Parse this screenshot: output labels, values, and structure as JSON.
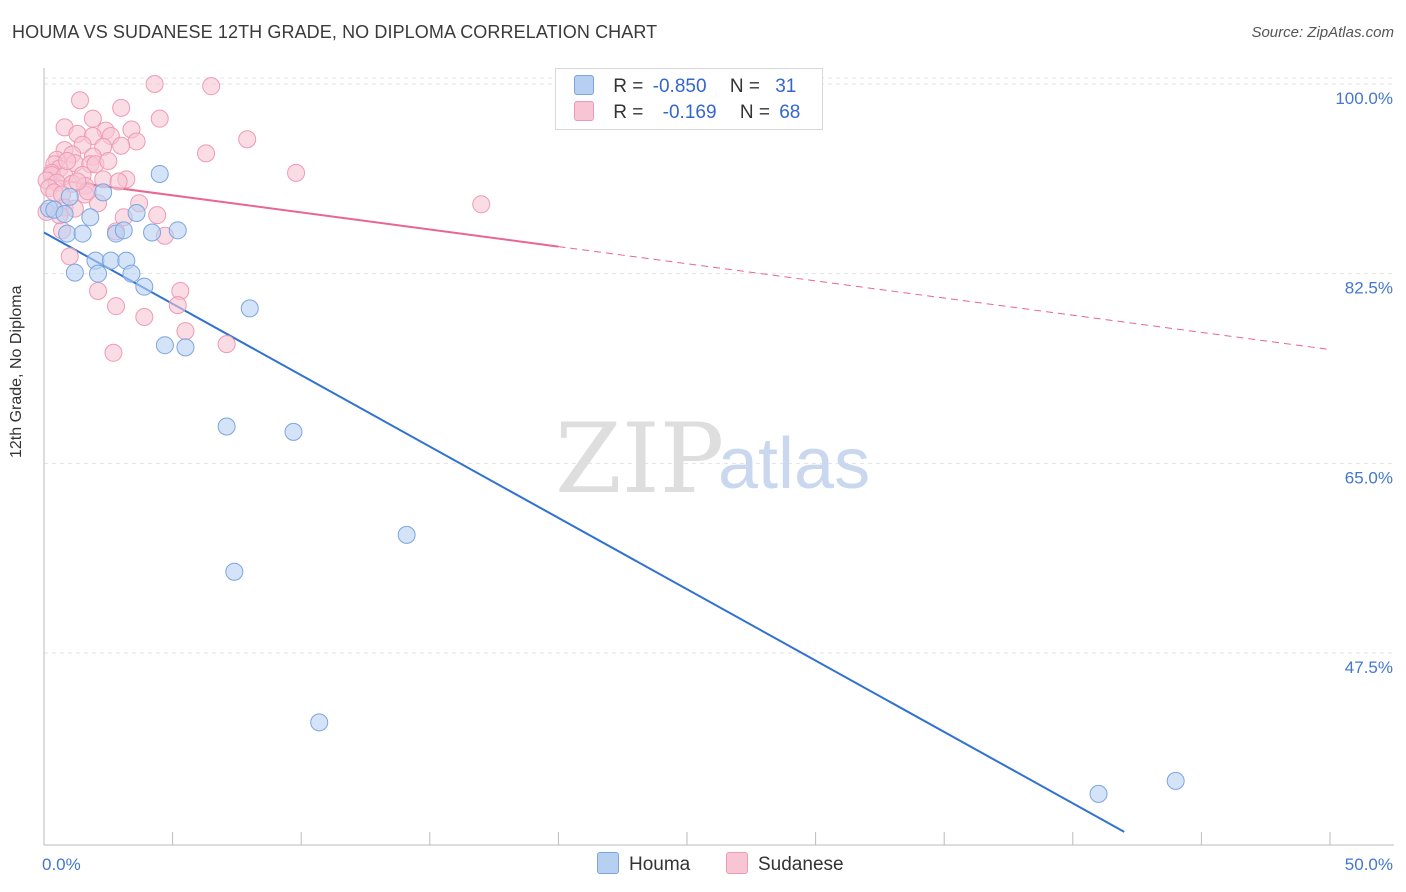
{
  "title": "HOUMA VS SUDANESE 12TH GRADE, NO DIPLOMA CORRELATION CHART",
  "source": "Source: ZipAtlas.com",
  "watermark": {
    "zip": "ZIP",
    "atlas": "atlas"
  },
  "legend": {
    "houma": {
      "r_label": "R = ",
      "r_value": "-0.850",
      "n_label": "N = ",
      "n_value": "31"
    },
    "sudanese": {
      "r_label": "R = ",
      "r_value": "-0.169",
      "n_label": "N = ",
      "n_value": "68"
    }
  },
  "colors": {
    "houma_fill": "#b7d0f2",
    "houma_stroke": "#7aa6e0",
    "houma_line": "#2f72d1",
    "sudanese_fill": "#f7c5d4",
    "sudanese_stroke": "#ef9ab5",
    "sudanese_line": "#e8668f",
    "tick_text": "#4477cc"
  },
  "chart_data": {
    "type": "scatter",
    "title": "HOUMA VS SUDANESE 12TH GRADE, NO DIPLOMA CORRELATION CHART",
    "xlabel": "",
    "ylabel": "12th Grade, No Diploma",
    "xlim": [
      0,
      50
    ],
    "ylim": [
      30,
      102
    ],
    "x_tick_labels": [
      "0.0%",
      "50.0%"
    ],
    "y_ticks": [
      100.0,
      82.5,
      65.0,
      47.5
    ],
    "y_tick_labels": [
      "100.0%",
      "82.5%",
      "65.0%",
      "47.5%"
    ],
    "series": [
      {
        "name": "Houma",
        "trend": {
          "x": [
            0,
            42
          ],
          "y": [
            86.3,
            31
          ]
        },
        "points": [
          [
            0.2,
            88.5
          ],
          [
            0.4,
            88.4
          ],
          [
            0.8,
            88.0
          ],
          [
            1.8,
            87.7
          ],
          [
            3.6,
            88.1
          ],
          [
            0.9,
            86.2
          ],
          [
            1.5,
            86.2
          ],
          [
            2.8,
            86.2
          ],
          [
            3.1,
            86.5
          ],
          [
            4.2,
            86.3
          ],
          [
            5.2,
            86.5
          ],
          [
            1.2,
            82.6
          ],
          [
            2.0,
            83.7
          ],
          [
            2.1,
            82.5
          ],
          [
            2.6,
            83.7
          ],
          [
            3.2,
            83.7
          ],
          [
            3.4,
            82.5
          ],
          [
            3.9,
            81.3
          ],
          [
            4.5,
            91.7
          ],
          [
            4.7,
            75.9
          ],
          [
            5.5,
            75.7
          ],
          [
            8.0,
            79.3
          ],
          [
            7.1,
            68.4
          ],
          [
            9.7,
            67.9
          ],
          [
            7.4,
            55.0
          ],
          [
            14.1,
            58.4
          ],
          [
            10.7,
            41.1
          ],
          [
            41.0,
            34.5
          ],
          [
            44.0,
            35.7
          ],
          [
            2.3,
            90.0
          ],
          [
            1.0,
            89.6
          ]
        ]
      },
      {
        "name": "Sudanese",
        "trend": {
          "x": [
            0,
            20
          ],
          "y": [
            91.3,
            85.0
          ]
        },
        "trend_dashed": {
          "x": [
            20,
            50
          ],
          "y": [
            85.0,
            75.5
          ]
        },
        "points": [
          [
            4.3,
            100.0
          ],
          [
            6.5,
            99.8
          ],
          [
            1.4,
            98.5
          ],
          [
            3.0,
            97.8
          ],
          [
            1.9,
            96.8
          ],
          [
            4.5,
            96.8
          ],
          [
            0.8,
            96.0
          ],
          [
            1.3,
            95.4
          ],
          [
            2.4,
            95.7
          ],
          [
            3.4,
            95.8
          ],
          [
            1.9,
            95.2
          ],
          [
            2.6,
            95.2
          ],
          [
            3.6,
            94.7
          ],
          [
            7.9,
            94.9
          ],
          [
            1.5,
            94.4
          ],
          [
            2.3,
            94.2
          ],
          [
            3.0,
            94.3
          ],
          [
            0.8,
            93.9
          ],
          [
            1.1,
            93.5
          ],
          [
            1.9,
            93.3
          ],
          [
            6.3,
            93.6
          ],
          [
            0.5,
            93.0
          ],
          [
            0.4,
            92.6
          ],
          [
            1.2,
            92.7
          ],
          [
            1.8,
            92.6
          ],
          [
            2.0,
            92.6
          ],
          [
            0.6,
            92.2
          ],
          [
            0.3,
            91.8
          ],
          [
            0.3,
            91.6
          ],
          [
            0.8,
            91.5
          ],
          [
            1.5,
            91.6
          ],
          [
            2.3,
            91.2
          ],
          [
            3.2,
            91.2
          ],
          [
            9.8,
            91.8
          ],
          [
            0.1,
            91.1
          ],
          [
            0.5,
            90.9
          ],
          [
            1.1,
            90.8
          ],
          [
            0.2,
            90.4
          ],
          [
            1.6,
            90.6
          ],
          [
            0.4,
            90.0
          ],
          [
            0.7,
            89.8
          ],
          [
            1.6,
            89.8
          ],
          [
            2.1,
            89.0
          ],
          [
            0.8,
            88.6
          ],
          [
            17.0,
            88.9
          ],
          [
            1.2,
            88.5
          ],
          [
            0.1,
            88.2
          ],
          [
            3.1,
            87.7
          ],
          [
            4.4,
            87.9
          ],
          [
            0.7,
            86.5
          ],
          [
            2.8,
            86.4
          ],
          [
            4.7,
            86.0
          ],
          [
            1.0,
            84.1
          ],
          [
            2.1,
            80.9
          ],
          [
            5.3,
            80.9
          ],
          [
            2.8,
            79.5
          ],
          [
            5.2,
            79.6
          ],
          [
            3.9,
            78.5
          ],
          [
            5.5,
            77.2
          ],
          [
            7.1,
            76.0
          ],
          [
            2.7,
            75.2
          ],
          [
            1.7,
            90.1
          ],
          [
            2.5,
            92.9
          ],
          [
            0.9,
            92.9
          ],
          [
            3.7,
            89.0
          ],
          [
            2.9,
            91.0
          ],
          [
            1.3,
            91.0
          ],
          [
            0.6,
            87.9
          ]
        ]
      }
    ]
  },
  "bottom_legend": {
    "houma": "Houma",
    "sudanese": "Sudanese"
  },
  "y_axis_title": "12th Grade, No Diploma"
}
